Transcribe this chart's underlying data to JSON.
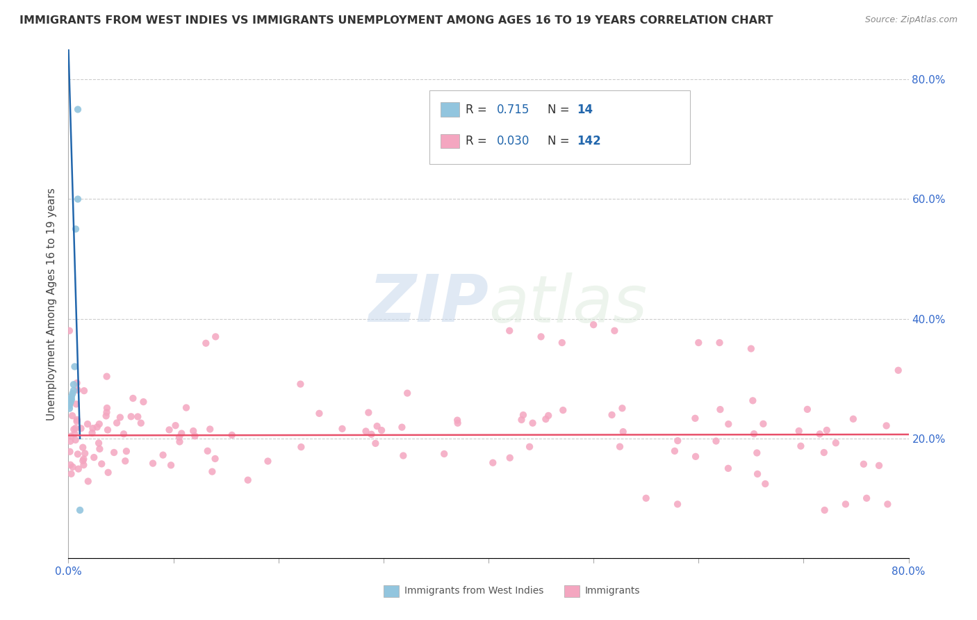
{
  "title": "IMMIGRANTS FROM WEST INDIES VS IMMIGRANTS UNEMPLOYMENT AMONG AGES 16 TO 19 YEARS CORRELATION CHART",
  "source": "Source: ZipAtlas.com",
  "ylabel": "Unemployment Among Ages 16 to 19 years",
  "xlim": [
    0.0,
    0.8
  ],
  "ylim": [
    0.0,
    0.85
  ],
  "blue_color": "#92c5de",
  "pink_color": "#f4a6c0",
  "blue_line_color": "#2166ac",
  "pink_line_color": "#e8506a",
  "R_blue": 0.715,
  "N_blue": 14,
  "R_pink": 0.03,
  "N_pink": 142,
  "legend_text_color": "#2166ac",
  "legend_label_color": "#333333",
  "watermark_zip": "ZIP",
  "watermark_atlas": "atlas",
  "background_color": "#ffffff",
  "blue_scatter_x": [
    0.009,
    0.009,
    0.007,
    0.006,
    0.005,
    0.005,
    0.004,
    0.003,
    0.003,
    0.002,
    0.002,
    0.001,
    0.001,
    0.011
  ],
  "blue_scatter_y": [
    0.75,
    0.6,
    0.55,
    0.32,
    0.29,
    0.28,
    0.275,
    0.27,
    0.265,
    0.265,
    0.26,
    0.255,
    0.25,
    0.08
  ],
  "pink_line_y0": 0.205,
  "pink_line_slope": 0.002,
  "blue_line_x0": 0.011,
  "blue_line_y0": 0.2,
  "blue_line_x1": 0.0,
  "blue_line_y1": 0.855
}
